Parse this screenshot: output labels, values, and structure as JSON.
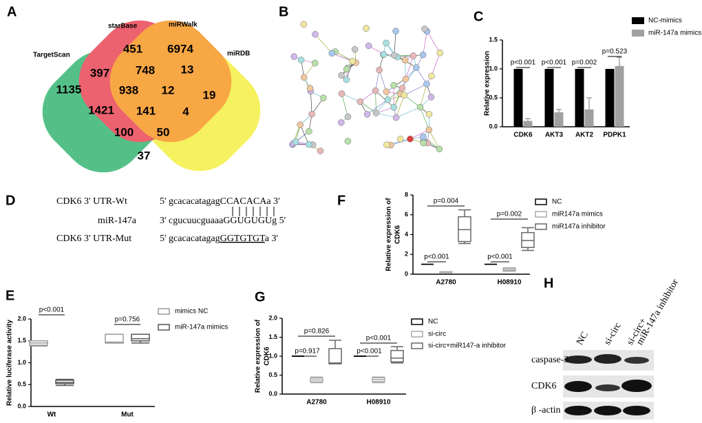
{
  "panels": [
    "A",
    "B",
    "C",
    "D",
    "E",
    "F",
    "G",
    "H"
  ],
  "venn": {
    "sets": [
      "TargetScan",
      "starBase",
      "miRWalk",
      "miRDB"
    ],
    "counts": [
      451,
      6974,
      397,
      748,
      13,
      1135,
      938,
      12,
      19,
      1421,
      141,
      4,
      100,
      50,
      37
    ]
  },
  "sequences": [
    {
      "label": "CDK6 3' UTR-Wt",
      "parts": [
        "5' gcacacatagag",
        "CCACACA",
        "a 3'"
      ]
    },
    {
      "label": "miR-147a",
      "parts": [
        "3' cgucuucguaaa",
        "GGUGUGU",
        "g 5'"
      ]
    },
    {
      "label": "CDK6 3' UTR-Mut",
      "parts": [
        "5' gcacacatagag",
        "GGTGTGT",
        "a 3'"
      ]
    }
  ],
  "blot": {
    "lanes": [
      [
        "NC"
      ],
      [
        "si-circ"
      ],
      [
        "si-circ+",
        "miR-147a inhibitor"
      ]
    ],
    "rows": [
      "caspase-3",
      "CDK6",
      "β -actin"
    ]
  },
  "chart_data": [
    {
      "type": "bar",
      "ylabel": "Relative expression",
      "categories": [
        "CDK6",
        "AKT3",
        "AKT2",
        "PDPK1"
      ],
      "series": [
        {
          "name": "NC-mimics",
          "color": "#000000",
          "values": [
            1,
            1,
            1,
            1
          ]
        },
        {
          "name": "miR-147a mimics",
          "color": "#a0a0a0",
          "values": [
            0.1,
            0.25,
            0.3,
            1.05
          ],
          "errors": [
            0.04,
            0.05,
            0.2,
            0.15
          ]
        }
      ],
      "ylim": [
        0,
        1.5
      ],
      "yticks": [
        {
          "value": 0,
          "label": "0.0"
        },
        0.5,
        {
          "value": 1,
          "label": "1.0"
        },
        1.5
      ],
      "annotations": [
        "p<0.001",
        "p<0.001",
        "p=0.002",
        "p=0.523"
      ]
    },
    {
      "type": "box",
      "ylabel": [
        "Relative expression of",
        "CDK6"
      ],
      "categories": [
        "A2780",
        "H08910"
      ],
      "series": [
        {
          "name": "NC",
          "color": "#000000",
          "min": [
            1,
            1
          ],
          "q1": [
            1,
            1
          ],
          "median": [
            1,
            1
          ],
          "q3": [
            1,
            1
          ],
          "max": [
            1,
            1
          ]
        },
        {
          "name": "miR147a mimics",
          "color": "#aaaaaa",
          "min": [
            0.15,
            0.3
          ],
          "q1": [
            0.17,
            0.35
          ],
          "median": [
            0.2,
            0.45
          ],
          "q3": [
            0.23,
            0.6
          ],
          "max": [
            0.25,
            0.65
          ]
        },
        {
          "name": "miR147a inhibitor",
          "color": "#666666",
          "min": [
            3.1,
            2.4
          ],
          "q1": [
            3.3,
            2.7
          ],
          "median": [
            4.5,
            3.4
          ],
          "q3": [
            5.8,
            4.2
          ],
          "max": [
            6.5,
            4.7
          ]
        }
      ],
      "ylim": [
        0,
        8
      ],
      "yticks": [
        0,
        2,
        4,
        6,
        8
      ],
      "annotations": [
        "p=0.004",
        "p=0.002",
        "p<0.001",
        "p<0.001"
      ]
    },
    {
      "type": "box",
      "ylabel": "Relative luciferase activity",
      "categories": [
        "Wt",
        "Mut"
      ],
      "series": [
        {
          "name": "mimics NC",
          "color": "#999999",
          "min": [
            1.38,
            1.45
          ],
          "q1": [
            1.4,
            1.45
          ],
          "median": [
            1.45,
            1.47
          ],
          "q3": [
            1.5,
            1.65
          ],
          "max": [
            1.5,
            1.65
          ]
        },
        {
          "name": "miR-147a mimics",
          "color": "#555555",
          "min": [
            0.48,
            1.45
          ],
          "q1": [
            0.52,
            1.5
          ],
          "median": [
            0.55,
            1.55
          ],
          "q3": [
            0.6,
            1.65
          ],
          "max": [
            0.62,
            1.65
          ]
        }
      ],
      "ylim": [
        0,
        2
      ],
      "yticks": [
        {
          "value": 0,
          "label": "0.0"
        },
        0.5,
        {
          "value": 1,
          "label": "1.0"
        },
        1.5,
        {
          "value": 2,
          "label": "2.0"
        }
      ],
      "annotations": [
        "p<0.001",
        "p=0.756"
      ]
    },
    {
      "type": "box",
      "ylabel": [
        "Relative expression of",
        "CDK6"
      ],
      "categories": [
        "A2780",
        "H08910"
      ],
      "series": [
        {
          "name": "NC",
          "color": "#000000",
          "min": [
            1,
            1
          ],
          "q1": [
            1,
            1
          ],
          "median": [
            1,
            1
          ],
          "q3": [
            1,
            1
          ],
          "max": [
            1,
            1
          ]
        },
        {
          "name": "si-circ",
          "color": "#aaaaaa",
          "min": [
            0.3,
            0.3
          ],
          "q1": [
            0.32,
            0.33
          ],
          "median": [
            0.37,
            0.38
          ],
          "q3": [
            0.42,
            0.43
          ],
          "max": [
            0.45,
            0.45
          ]
        },
        {
          "name": "si-circ+miR147-a inhibitor",
          "color": "#666666",
          "min": [
            0.8,
            0.82
          ],
          "q1": [
            0.8,
            0.85
          ],
          "median": [
            0.82,
            0.95
          ],
          "q3": [
            1.2,
            1.15
          ],
          "max": [
            1.42,
            1.25
          ]
        }
      ],
      "ylim": [
        0,
        2
      ],
      "yticks": [
        {
          "value": 0,
          "label": "0.0"
        },
        0.5,
        {
          "value": 1,
          "label": "1.0"
        },
        1.5,
        {
          "value": 2,
          "label": "2.0"
        }
      ],
      "annotations": [
        "p=0.826",
        "p<0.001",
        "p=0.917",
        "p<0.001"
      ]
    }
  ]
}
